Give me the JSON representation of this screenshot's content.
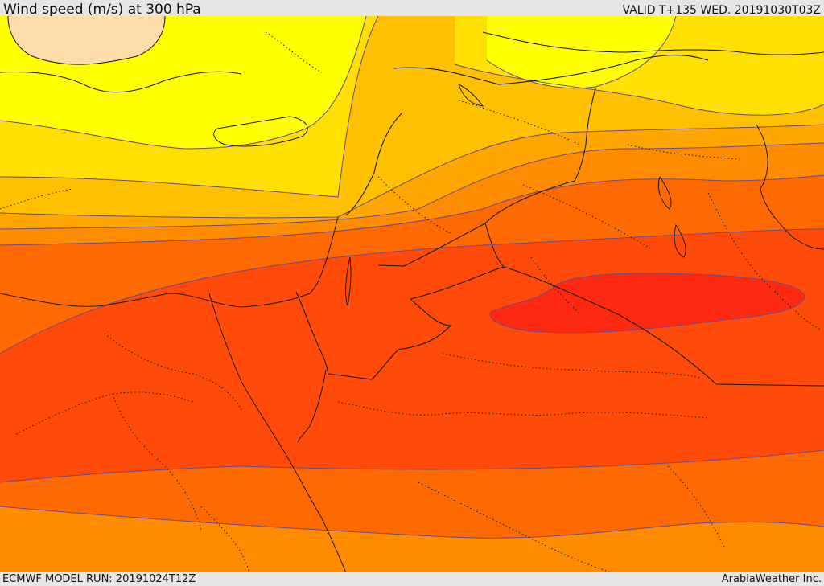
{
  "header": {
    "title": "Wind speed (m/s) at 300 hPa",
    "valid": "VALID T+135 WED. 20191030T03Z"
  },
  "footer": {
    "model_run": "ECMWF MODEL RUN: 20191024T12Z",
    "credit": "ArabiaWeather Inc."
  },
  "colors": {
    "band_yellow": "#ffff00",
    "band_gold": "#ffe000",
    "band_amber": "#ffc000",
    "band_orange_light": "#ffa600",
    "band_orange": "#ff8c00",
    "band_deep_orange": "#ff6a00",
    "band_red_orange": "#ff4a0a",
    "band_red": "#ff2810",
    "land_highlight": "#fddcaa",
    "isoline": "#6a4a88",
    "border": "#1a1a1a"
  }
}
